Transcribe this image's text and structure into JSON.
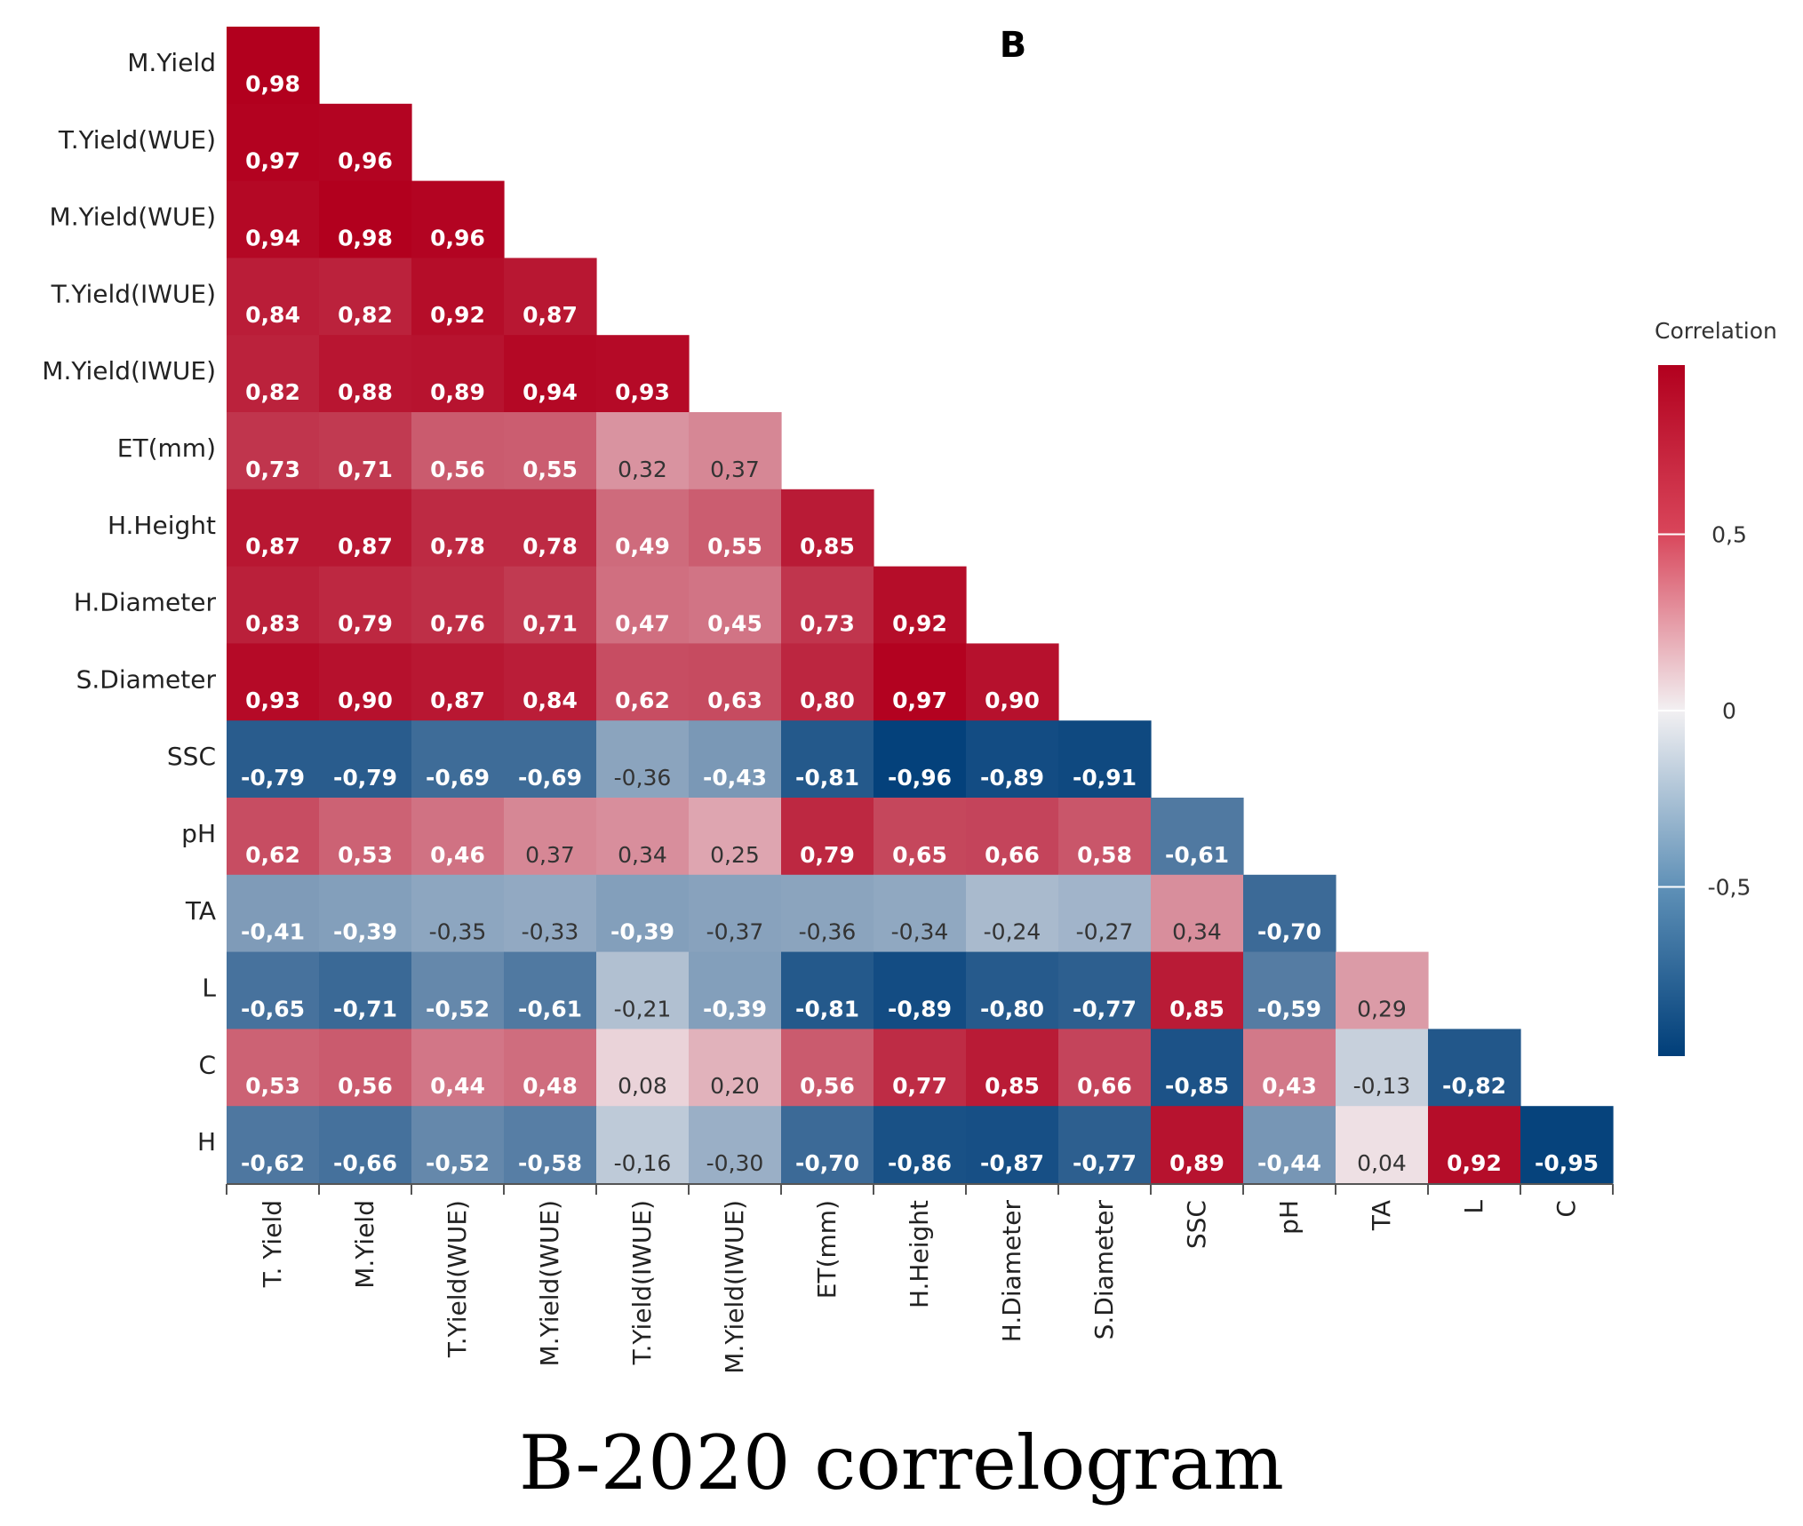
{
  "panel_label": "B",
  "caption": "B-2020 correlogram",
  "legend": {
    "title": "Correlation",
    "ticks": [
      {
        "value": 0.5,
        "label": "0,5"
      },
      {
        "value": 0,
        "label": "0"
      },
      {
        "value": -0.5,
        "label": "-0,5"
      }
    ],
    "range": [
      -0.98,
      0.98
    ]
  },
  "colors": {
    "positive": "#b2001e",
    "neutral": "#f2f0f2",
    "negative": "#003e79"
  },
  "chart_data": {
    "type": "heatmap",
    "title": "B",
    "subtitle": "B-2020 correlogram",
    "x_labels": [
      "T. Yield",
      "M.Yield",
      "T.Yield(WUE)",
      "M.Yield(WUE)",
      "T.Yield(IWUE)",
      "M.Yield(IWUE)",
      "ET(mm)",
      "H.Height",
      "H.Diameter",
      "S.Diameter",
      "SSC",
      "pH",
      "TA",
      "L",
      "C"
    ],
    "y_labels": [
      "M.Yield",
      "T.Yield(WUE)",
      "M.Yield(WUE)",
      "T.Yield(IWUE)",
      "M.Yield(IWUE)",
      "ET(mm)",
      "H.Height",
      "H.Diameter",
      "S.Diameter",
      "SSC",
      "pH",
      "TA",
      "L",
      "C",
      "H"
    ],
    "values": [
      [
        0.98
      ],
      [
        0.97,
        0.96
      ],
      [
        0.94,
        0.98,
        0.96
      ],
      [
        0.84,
        0.82,
        0.92,
        0.87
      ],
      [
        0.82,
        0.88,
        0.89,
        0.94,
        0.93
      ],
      [
        0.73,
        0.71,
        0.56,
        0.55,
        0.32,
        0.37
      ],
      [
        0.87,
        0.87,
        0.78,
        0.78,
        0.49,
        0.55,
        0.85
      ],
      [
        0.83,
        0.79,
        0.76,
        0.71,
        0.47,
        0.45,
        0.73,
        0.92
      ],
      [
        0.93,
        0.9,
        0.87,
        0.84,
        0.62,
        0.63,
        0.8,
        0.97,
        0.9
      ],
      [
        -0.79,
        -0.79,
        -0.69,
        -0.69,
        -0.36,
        -0.43,
        -0.81,
        -0.96,
        -0.89,
        -0.91
      ],
      [
        0.62,
        0.53,
        0.46,
        0.37,
        0.34,
        0.25,
        0.79,
        0.65,
        0.66,
        0.58,
        -0.61
      ],
      [
        -0.41,
        -0.39,
        -0.35,
        -0.33,
        -0.39,
        -0.37,
        -0.36,
        -0.34,
        -0.24,
        -0.27,
        0.34,
        -0.7
      ],
      [
        -0.65,
        -0.71,
        -0.52,
        -0.61,
        -0.21,
        -0.39,
        -0.81,
        -0.89,
        -0.8,
        -0.77,
        0.85,
        -0.59,
        0.29
      ],
      [
        0.53,
        0.56,
        0.44,
        0.48,
        0.08,
        0.2,
        0.56,
        0.77,
        0.85,
        0.66,
        -0.85,
        0.43,
        -0.13,
        -0.82
      ],
      [
        -0.62,
        -0.66,
        -0.52,
        -0.58,
        -0.16,
        -0.3,
        -0.7,
        -0.86,
        -0.87,
        -0.77,
        0.89,
        -0.44,
        0.04,
        0.92,
        -0.95
      ]
    ],
    "value_format": "decimal comma, 2 places",
    "color_range": [
      -0.98,
      0.98
    ]
  }
}
